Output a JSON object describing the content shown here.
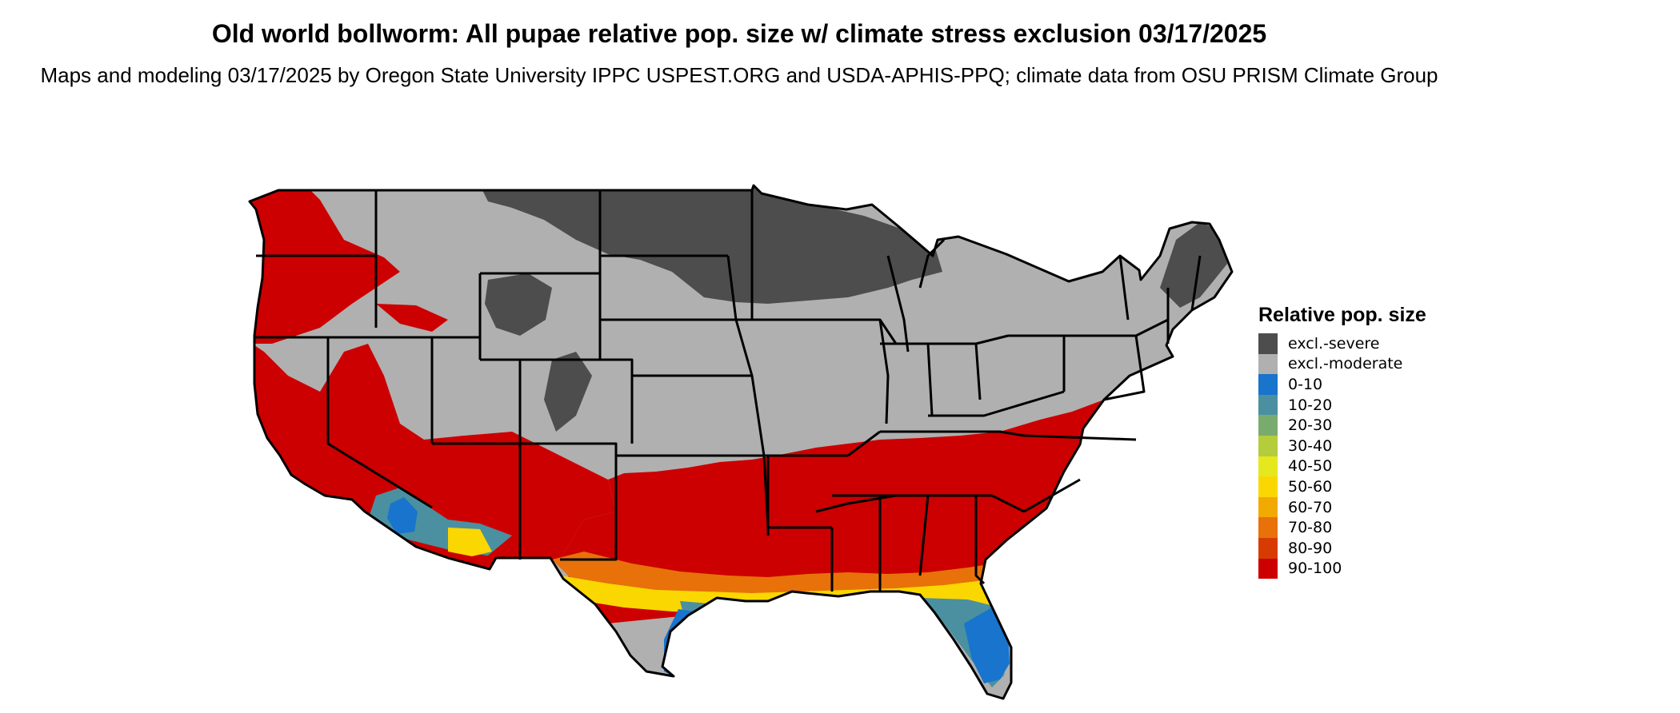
{
  "title": "Old world bollworm: All pupae relative pop. size w/ climate stress exclusion 03/17/2025",
  "subtitle": "Maps and modeling 03/17/2025 by Oregon State University IPPC USPEST.ORG and USDA-APHIS-PPQ; climate data from OSU PRISM Climate Group",
  "legend": {
    "title": "Relative pop. size",
    "items": [
      {
        "label": "excl.-severe",
        "color": "#4d4d4d"
      },
      {
        "label": "excl.-moderate",
        "color": "#b0b0b0"
      },
      {
        "label": "0-10",
        "color": "#1874cd"
      },
      {
        "label": "10-20",
        "color": "#4a90a0"
      },
      {
        "label": "20-30",
        "color": "#7aab6e"
      },
      {
        "label": "30-40",
        "color": "#b5cc3c"
      },
      {
        "label": "40-50",
        "color": "#e6e81e"
      },
      {
        "label": "50-60",
        "color": "#fad700"
      },
      {
        "label": "60-70",
        "color": "#f2a900"
      },
      {
        "label": "70-80",
        "color": "#e8710a"
      },
      {
        "label": "80-90",
        "color": "#d83b01"
      },
      {
        "label": "90-100",
        "color": "#cc0000"
      }
    ]
  }
}
